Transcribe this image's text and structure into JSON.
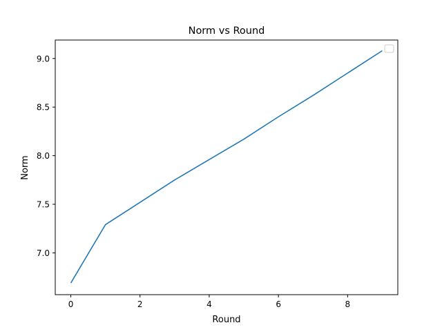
{
  "chart_data": {
    "type": "line",
    "title": "Norm vs Round",
    "xlabel": "Round",
    "ylabel": "Norm",
    "xlim": [
      -0.45,
      9.45
    ],
    "ylim": [
      6.57,
      9.19
    ],
    "xticks": [
      0,
      2,
      4,
      6,
      8
    ],
    "xtick_labels": [
      "0",
      "2",
      "4",
      "6",
      "8"
    ],
    "yticks": [
      7.0,
      7.5,
      8.0,
      8.5,
      9.0
    ],
    "ytick_labels": [
      "7.0",
      "7.5",
      "8.0",
      "8.5",
      "9.0"
    ],
    "grid": false,
    "legend": {
      "position": "top-right",
      "entries": []
    },
    "series": [
      {
        "color": "#1f77b4",
        "x": [
          0,
          1,
          2,
          3,
          4,
          5,
          6,
          7,
          8,
          9
        ],
        "y": [
          6.69,
          7.29,
          7.52,
          7.75,
          7.96,
          8.17,
          8.4,
          8.62,
          8.85,
          9.08
        ]
      }
    ]
  }
}
